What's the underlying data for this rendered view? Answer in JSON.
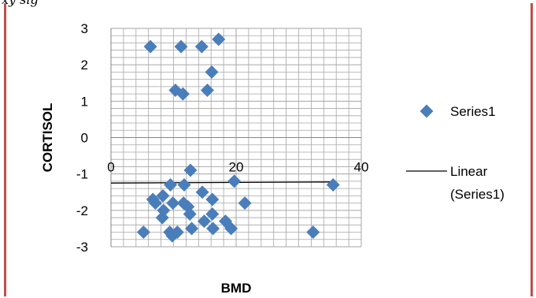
{
  "header_text": "xy sig",
  "chart_data": {
    "type": "scatter",
    "xlabel": "BMD",
    "ylabel": "CORTISOL",
    "xlim": [
      0,
      40
    ],
    "ylim": [
      -3,
      3
    ],
    "x_ticks": [
      "0",
      "20",
      "40"
    ],
    "y_ticks": [
      "3",
      "2",
      "1",
      "0",
      "-1",
      "-2",
      "-3"
    ],
    "grid": true,
    "legend_position": "right",
    "colors": {
      "marker": "#4a7ebb",
      "trendline": "#000000",
      "border": "#c0504d",
      "grid": "#a6a6a6"
    },
    "series": [
      {
        "name": "Series1",
        "points": [
          [
            6.3,
            2.5
          ],
          [
            11.2,
            2.5
          ],
          [
            14.5,
            2.5
          ],
          [
            17.2,
            2.7
          ],
          [
            10.3,
            1.3
          ],
          [
            11.5,
            1.2
          ],
          [
            16.1,
            1.8
          ],
          [
            15.4,
            1.3
          ],
          [
            12.7,
            -0.9
          ],
          [
            19.7,
            -1.2
          ],
          [
            35.5,
            -1.3
          ],
          [
            9.5,
            -1.3
          ],
          [
            11.7,
            -1.3
          ],
          [
            14.6,
            -1.5
          ],
          [
            8.3,
            -1.6
          ],
          [
            6.7,
            -1.7
          ],
          [
            7.1,
            -1.8
          ],
          [
            9.9,
            -1.8
          ],
          [
            11.6,
            -1.8
          ],
          [
            12.3,
            -1.9
          ],
          [
            16.2,
            -1.7
          ],
          [
            21.4,
            -1.8
          ],
          [
            8.4,
            -2.0
          ],
          [
            12.6,
            -2.1
          ],
          [
            16.2,
            -2.1
          ],
          [
            8.2,
            -2.2
          ],
          [
            14.9,
            -2.3
          ],
          [
            18.3,
            -2.3
          ],
          [
            12.9,
            -2.5
          ],
          [
            16.3,
            -2.5
          ],
          [
            19.2,
            -2.5
          ],
          [
            5.2,
            -2.6
          ],
          [
            9.4,
            -2.6
          ],
          [
            10.6,
            -2.6
          ],
          [
            9.8,
            -2.7
          ],
          [
            32.3,
            -2.6
          ]
        ]
      }
    ],
    "trendline": {
      "name": "Linear (Series1)",
      "x": [
        0,
        35.5
      ],
      "y": [
        -1.25,
        -1.22
      ]
    }
  }
}
